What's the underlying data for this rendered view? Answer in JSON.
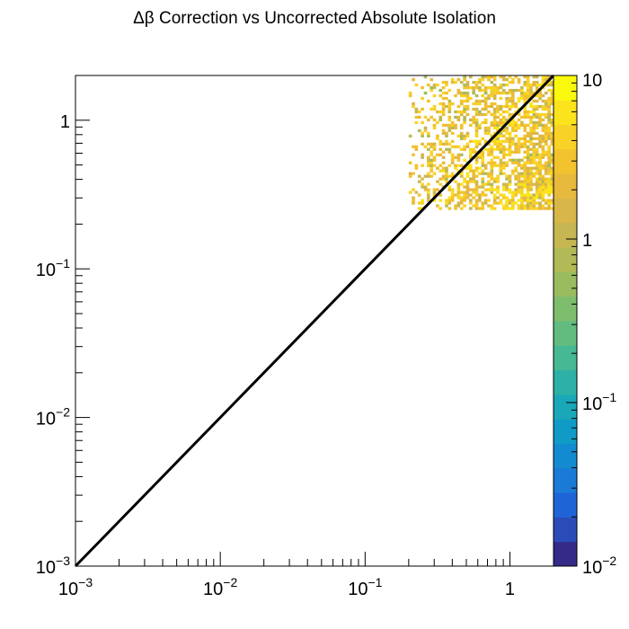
{
  "chart_data": {
    "type": "heatmap",
    "title": "Δβ Correction vs Uncorrected Absolute Isolation",
    "xlabel": "",
    "ylabel": "",
    "x_scale": "log",
    "y_scale": "log",
    "xlim": [
      0.001,
      2.0
    ],
    "ylim": [
      0.001,
      2.0
    ],
    "x_ticks": [
      {
        "value": 0.001,
        "base": "10",
        "exp": "−3"
      },
      {
        "value": 0.01,
        "base": "10",
        "exp": "−2"
      },
      {
        "value": 0.1,
        "base": "10",
        "exp": "−1"
      },
      {
        "value": 1,
        "base": "1",
        "exp": ""
      }
    ],
    "y_ticks": [
      {
        "value": 0.001,
        "base": "10",
        "exp": "−3"
      },
      {
        "value": 0.01,
        "base": "10",
        "exp": "−2"
      },
      {
        "value": 0.1,
        "base": "10",
        "exp": "−1"
      },
      {
        "value": 1,
        "base": "1",
        "exp": ""
      }
    ],
    "colorbar": {
      "scale": "log",
      "range": [
        0.01,
        10
      ],
      "ticks": [
        {
          "value": 10,
          "base": "10",
          "exp": ""
        },
        {
          "value": 1,
          "base": "1",
          "exp": ""
        },
        {
          "value": 0.1,
          "base": "10",
          "exp": "−1"
        },
        {
          "value": 0.01,
          "base": "10",
          "exp": "−2"
        }
      ],
      "palette": [
        "#352a87",
        "#2b4bb8",
        "#1f64d6",
        "#1a7ad6",
        "#138bd1",
        "#0f9bc6",
        "#1aa8b8",
        "#2db1a6",
        "#46b894",
        "#62bc80",
        "#7fbd6e",
        "#9abc5f",
        "#b2ba57",
        "#c6b753",
        "#d8b64a",
        "#e7b93d",
        "#f2c22f",
        "#f9d227",
        "#fbe31e",
        "#f9f90e"
      ]
    },
    "diagonal_line": {
      "from": [
        0.001,
        0.001
      ],
      "to": [
        2.0,
        2.0
      ],
      "color": "#000000"
    },
    "occupied_region": {
      "x_range": [
        0.2,
        2.0
      ],
      "y_range": [
        0.25,
        2.0
      ],
      "typical_count": [
        0.5,
        5
      ],
      "peak_count": 8
    }
  }
}
